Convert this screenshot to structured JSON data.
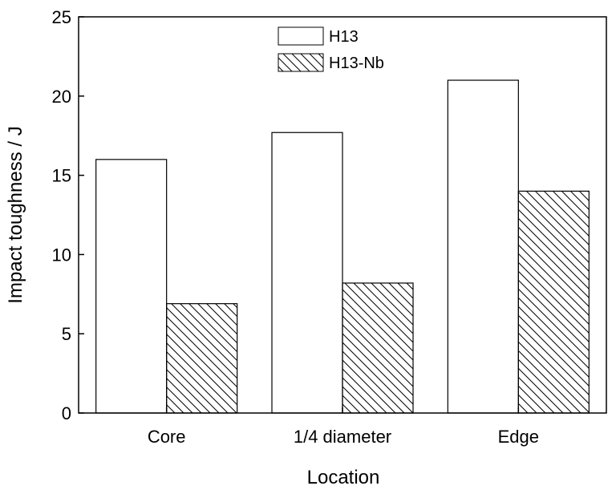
{
  "chart_data": {
    "type": "bar",
    "xlabel": "Location",
    "ylabel": "Impact  toughness / J",
    "categories": [
      "Core",
      "1/4 diameter",
      "Edge"
    ],
    "series": [
      {
        "name": "H13",
        "values": [
          16.0,
          17.7,
          21.0
        ],
        "fill": "solid-white"
      },
      {
        "name": "H13-Nb",
        "values": [
          6.9,
          8.2,
          14.0
        ],
        "fill": "diagonal-hatch"
      }
    ],
    "ylim": [
      0,
      25
    ],
    "yticks": [
      "0",
      "5",
      "10",
      "15",
      "20",
      "25"
    ],
    "grid": false,
    "legend_position": "top-center",
    "colors": {
      "edge": "#000000",
      "background": "#ffffff"
    }
  }
}
